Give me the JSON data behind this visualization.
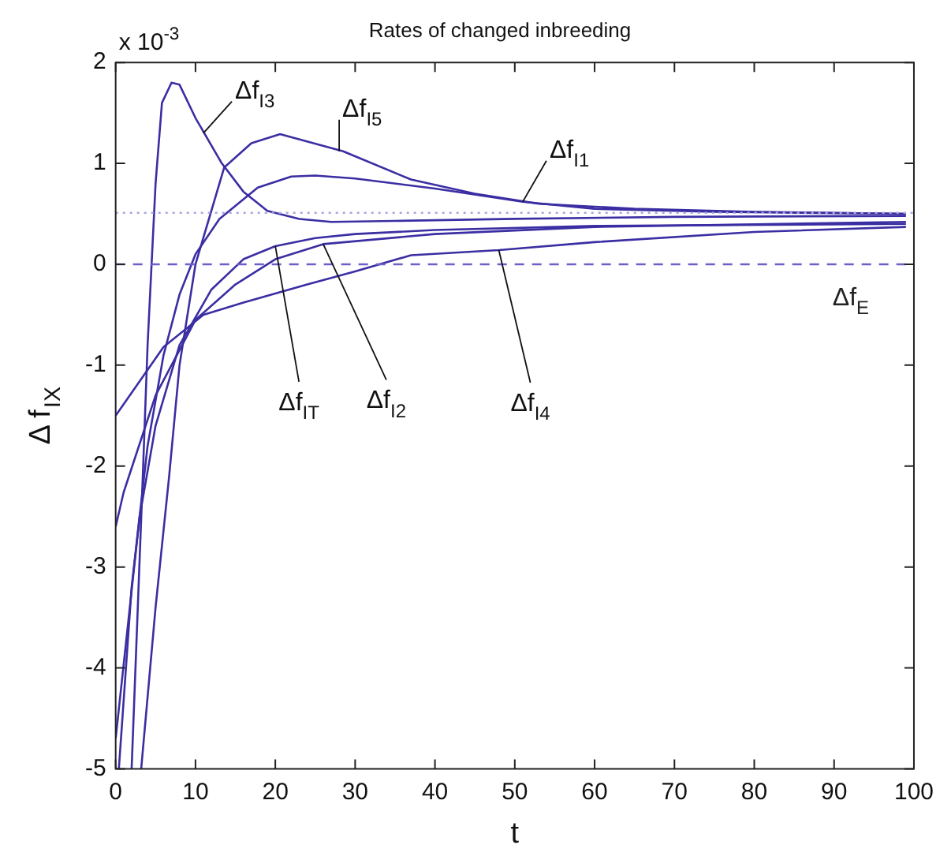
{
  "chart_data": {
    "type": "line",
    "title": "Rates of changed inbreeding",
    "xlabel": "t",
    "ylabel": "Δ f$_{IX}$",
    "xlim": [
      0,
      100
    ],
    "xticks": [
      0,
      10,
      20,
      30,
      40,
      50,
      60,
      70,
      80,
      90,
      100
    ],
    "ylim": [
      -5,
      2
    ],
    "yticks": [
      -5,
      -4,
      -3,
      -2,
      -1,
      0,
      1,
      2
    ],
    "grid": false,
    "legend": false,
    "marker": "none",
    "line_style": "solid",
    "series": [
      {
        "color": "#3b2ea3",
        "x": [
          2,
          3.4,
          4,
          5,
          5.8,
          7,
          8,
          10,
          13.3,
          16,
          19,
          23,
          27,
          35,
          50,
          70,
          99
        ],
        "values": [
          -5,
          -2.1,
          -0.8,
          0.8,
          1.6,
          1.8,
          1.78,
          1.45,
          1.0,
          0.72,
          0.53,
          0.45,
          0.42,
          0.43,
          0.45,
          0.47,
          0.48
        ]
      },
      {
        "color": "#3b2ea3",
        "x": [
          3.2,
          5,
          6.7,
          8,
          10,
          13.6,
          17,
          20.6,
          28.5,
          37,
          45,
          53,
          65,
          80,
          99
        ],
        "values": [
          -5,
          -3.4,
          -2.1,
          -1.0,
          0,
          0.96,
          1.2,
          1.29,
          1.12,
          0.84,
          0.7,
          0.6,
          0.55,
          0.52,
          0.5
        ]
      },
      {
        "color": "#3b2ea3",
        "x": [
          0.4,
          2,
          4,
          6,
          8,
          10,
          13,
          17.8,
          22,
          25,
          30,
          40,
          51,
          60,
          75,
          99
        ],
        "values": [
          -5,
          -3.2,
          -1.8,
          -0.9,
          -0.3,
          0.1,
          0.45,
          0.76,
          0.87,
          0.88,
          0.85,
          0.75,
          0.62,
          0.55,
          0.52,
          0.5
        ]
      },
      {
        "color": "#3b2ea3",
        "x": [
          0,
          3,
          5,
          8,
          12,
          16,
          20,
          25,
          30,
          40,
          60,
          99
        ],
        "values": [
          -4.7,
          -2.5,
          -1.6,
          -0.8,
          -0.25,
          0.05,
          0.18,
          0.26,
          0.3,
          0.34,
          0.38,
          0.4
        ]
      },
      {
        "color": "#3b2ea3",
        "x": [
          0,
          1,
          5,
          10,
          15,
          20,
          26,
          40,
          60,
          99
        ],
        "values": [
          -2.6,
          -2.26,
          -1.3,
          -0.55,
          -0.2,
          0.05,
          0.2,
          0.3,
          0.37,
          0.42
        ]
      },
      {
        "color": "#3b2ea3",
        "x": [
          0,
          6,
          11,
          16,
          24,
          30,
          37,
          48,
          60,
          80,
          99
        ],
        "values": [
          -1.5,
          -0.82,
          -0.5,
          -0.38,
          -0.2,
          -0.07,
          0.09,
          0.14,
          0.22,
          0.32,
          0.37
        ]
      }
    ],
    "ref_lines": [
      {
        "axis": "y",
        "value": 0,
        "label": "Δf$_{E}$",
        "color": "#6a60c8",
        "line_style": "dashed"
      },
      {
        "axis": "y",
        "value": 0.51,
        "color": "#a9a4e0",
        "line_style": "dotted"
      }
    ],
    "annotations": [
      "x 10$^{-3}$",
      {
        "text": "Δf$_{I3}$",
        "x": 11,
        "y": 1.3
      },
      {
        "text": "Δf$_{I5}$",
        "x": 28,
        "y": 1.12
      },
      {
        "text": "Δf$_{I1}$",
        "x": 51,
        "y": 0.62
      },
      {
        "text": "Δf$_{IT}$",
        "x": 20,
        "y": 0.18
      },
      {
        "text": "Δf$_{I2}$",
        "x": 26,
        "y": 0.2
      },
      {
        "text": "Δf$_{I4}$",
        "x": 48,
        "y": 0.14
      }
    ]
  }
}
